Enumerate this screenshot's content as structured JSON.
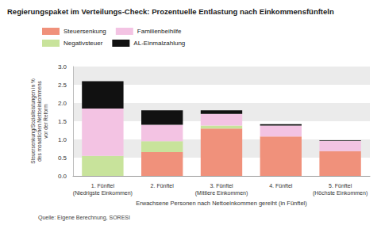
{
  "chart_data": {
    "type": "bar",
    "title": "Regierungspaket im Verteilungs-Check: Prozentuelle Entlastung nach Einkommensfünfteln",
    "x_label": "Erwachsene Personen nach Nettoeinkommen gereiht (in Fünftel)",
    "y_label": "Steuersenkung/Sozialleistungen in %\ndes monatlichen Nettoeinkommens\nvor der Reform",
    "source": "Quelle: Eigene Berechnung, SORESI",
    "categories": [
      "1. Fünftel\n(Niedrigste Einkommen)",
      "2. Fünftel",
      "3. Fünftel\n(Mittlere Einkommen)",
      "4. Fünftel",
      "5. Fünftel\n(Höchste Einkommen)"
    ],
    "series": [
      {
        "name": "Steuersenkung",
        "color": "#f0917b",
        "values": [
          0,
          0.65,
          1.3,
          1.08,
          0.68
        ]
      },
      {
        "name": "Familienbeihilfe",
        "color": "#f3c3e3",
        "values": [
          1.3,
          0.45,
          0.32,
          0.3,
          0.28
        ]
      },
      {
        "name": "Negativsteuer",
        "color": "#c8e39b",
        "values": [
          0.55,
          0.3,
          0.08,
          0,
          0
        ]
      },
      {
        "name": "AL-Einmalzahlung",
        "color": "#111111",
        "values": [
          0.75,
          0.4,
          0.1,
          0.04,
          0.02
        ]
      }
    ],
    "stack_order": [
      "Steuersenkung",
      "Negativsteuer",
      "Familienbeihilfe",
      "AL-Einmalzahlung"
    ],
    "stacked": true,
    "ylim": [
      0,
      3
    ],
    "yticks": [
      {
        "value": 0,
        "label": "0.0"
      },
      {
        "value": 0.5,
        "label": "0.5"
      },
      {
        "value": 1,
        "label": "1.0"
      },
      {
        "value": 1.5,
        "label": "1.5"
      },
      {
        "value": 2,
        "label": "2.0"
      },
      {
        "value": 2.5,
        "label": "2.5"
      },
      {
        "value": 3,
        "label": "3.0"
      }
    ],
    "grid": true,
    "legend": "top-left"
  }
}
